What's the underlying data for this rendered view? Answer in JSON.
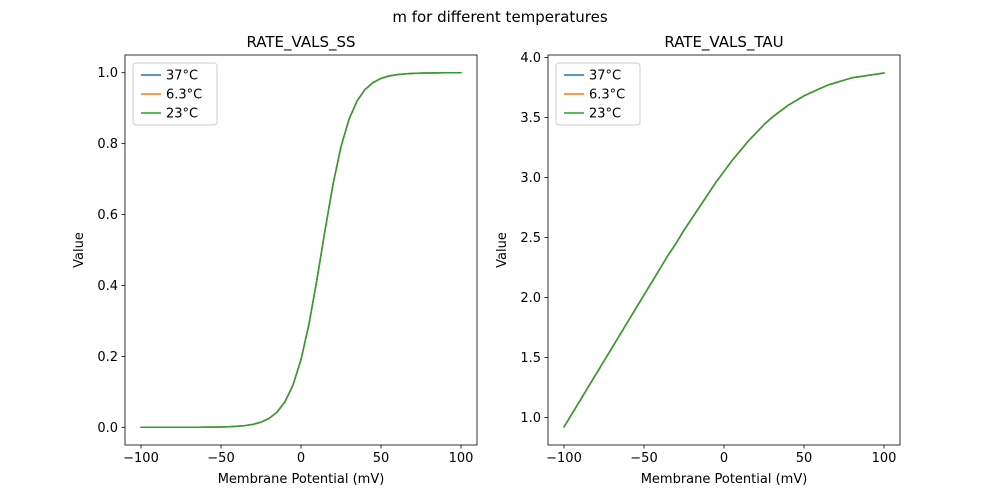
{
  "figure": {
    "title": "m for different temperatures",
    "background": "#ffffff"
  },
  "chart_data": [
    {
      "type": "line",
      "title": "RATE_VALS_SS",
      "xlabel": "Membrane Potential (mV)",
      "ylabel": "Value",
      "xlim": [
        -110,
        110
      ],
      "ylim": [
        -0.05,
        1.05
      ],
      "xticks": [
        -100,
        -50,
        0,
        50,
        100
      ],
      "xtick_labels": [
        "−100",
        "−50",
        "0",
        "50",
        "100"
      ],
      "yticks": [
        0.0,
        0.2,
        0.4,
        0.6,
        0.8,
        1.0
      ],
      "ytick_labels": [
        "0.0",
        "0.2",
        "0.4",
        "0.6",
        "0.8",
        "1.0"
      ],
      "grid": false,
      "legend_position": "upper left",
      "note": "all three temperature series overlap exactly; green (23°C) drawn on top",
      "x": [
        -100,
        -95,
        -90,
        -85,
        -80,
        -75,
        -70,
        -65,
        -60,
        -55,
        -50,
        -45,
        -40,
        -35,
        -30,
        -25,
        -20,
        -15,
        -10,
        -5,
        0,
        5,
        10,
        15,
        20,
        25,
        30,
        35,
        40,
        45,
        50,
        55,
        60,
        65,
        70,
        75,
        80,
        85,
        90,
        95,
        100
      ],
      "series": [
        {
          "name": "37°C",
          "color": "#1f77b4",
          "values": [
            0.0,
            0.0,
            0.0,
            0.0,
            0.0001,
            0.0001,
            0.0001,
            0.0002,
            0.0003,
            0.0005,
            0.0009,
            0.0016,
            0.0028,
            0.0048,
            0.0083,
            0.0145,
            0.0249,
            0.0426,
            0.072,
            0.1192,
            0.1908,
            0.2911,
            0.4174,
            0.5553,
            0.6852,
            0.7914,
            0.8687,
            0.9202,
            0.9526,
            0.9722,
            0.9839,
            0.9907,
            0.9946,
            0.9969,
            0.9982,
            0.999,
            0.9994,
            0.9997,
            0.9998,
            0.9999,
            0.9999
          ]
        },
        {
          "name": "6.3°C",
          "color": "#ff7f0e",
          "values": [
            0.0,
            0.0,
            0.0,
            0.0,
            0.0001,
            0.0001,
            0.0001,
            0.0002,
            0.0003,
            0.0005,
            0.0009,
            0.0016,
            0.0028,
            0.0048,
            0.0083,
            0.0145,
            0.0249,
            0.0426,
            0.072,
            0.1192,
            0.1908,
            0.2911,
            0.4174,
            0.5553,
            0.6852,
            0.7914,
            0.8687,
            0.9202,
            0.9526,
            0.9722,
            0.9839,
            0.9907,
            0.9946,
            0.9969,
            0.9982,
            0.999,
            0.9994,
            0.9997,
            0.9998,
            0.9999,
            0.9999
          ]
        },
        {
          "name": "23°C",
          "color": "#2ca02c",
          "values": [
            0.0,
            0.0,
            0.0,
            0.0,
            0.0001,
            0.0001,
            0.0001,
            0.0002,
            0.0003,
            0.0005,
            0.0009,
            0.0016,
            0.0028,
            0.0048,
            0.0083,
            0.0145,
            0.0249,
            0.0426,
            0.072,
            0.1192,
            0.1908,
            0.2911,
            0.4174,
            0.5553,
            0.6852,
            0.7914,
            0.8687,
            0.9202,
            0.9526,
            0.9722,
            0.9839,
            0.9907,
            0.9946,
            0.9969,
            0.9982,
            0.999,
            0.9994,
            0.9997,
            0.9998,
            0.9999,
            0.9999
          ]
        }
      ]
    },
    {
      "type": "line",
      "title": "RATE_VALS_TAU",
      "xlabel": "Membrane Potential (mV)",
      "ylabel": "Value",
      "xlim": [
        -110,
        110
      ],
      "ylim": [
        0.77,
        4.02
      ],
      "xticks": [
        -100,
        -50,
        0,
        50,
        100
      ],
      "xtick_labels": [
        "−100",
        "−50",
        "0",
        "50",
        "100"
      ],
      "yticks": [
        1.0,
        1.5,
        2.0,
        2.5,
        3.0,
        3.5,
        4.0
      ],
      "ytick_labels": [
        "1.0",
        "1.5",
        "2.0",
        "2.5",
        "3.0",
        "3.5",
        "4.0"
      ],
      "grid": false,
      "legend_position": "upper left",
      "note": "all three temperature series overlap exactly; green (23°C) drawn on top",
      "x": [
        -100,
        -95,
        -90,
        -85,
        -80,
        -75,
        -70,
        -65,
        -60,
        -55,
        -50,
        -45,
        -40,
        -35,
        -30,
        -25,
        -20,
        -15,
        -10,
        -5,
        0,
        5,
        10,
        15,
        20,
        25,
        30,
        35,
        40,
        45,
        50,
        55,
        60,
        65,
        70,
        75,
        80,
        85,
        90,
        95,
        100
      ],
      "series": [
        {
          "name": "37°C",
          "color": "#1f77b4",
          "values": [
            0.92,
            1.03,
            1.14,
            1.25,
            1.36,
            1.47,
            1.58,
            1.69,
            1.8,
            1.91,
            2.02,
            2.13,
            2.24,
            2.35,
            2.45,
            2.56,
            2.66,
            2.76,
            2.86,
            2.96,
            3.05,
            3.14,
            3.22,
            3.3,
            3.37,
            3.44,
            3.5,
            3.55,
            3.6,
            3.64,
            3.68,
            3.71,
            3.74,
            3.77,
            3.79,
            3.81,
            3.83,
            3.84,
            3.85,
            3.86,
            3.87
          ]
        },
        {
          "name": "6.3°C",
          "color": "#ff7f0e",
          "values": [
            0.92,
            1.03,
            1.14,
            1.25,
            1.36,
            1.47,
            1.58,
            1.69,
            1.8,
            1.91,
            2.02,
            2.13,
            2.24,
            2.35,
            2.45,
            2.56,
            2.66,
            2.76,
            2.86,
            2.96,
            3.05,
            3.14,
            3.22,
            3.3,
            3.37,
            3.44,
            3.5,
            3.55,
            3.6,
            3.64,
            3.68,
            3.71,
            3.74,
            3.77,
            3.79,
            3.81,
            3.83,
            3.84,
            3.85,
            3.86,
            3.87
          ]
        },
        {
          "name": "23°C",
          "color": "#2ca02c",
          "values": [
            0.92,
            1.03,
            1.14,
            1.25,
            1.36,
            1.47,
            1.58,
            1.69,
            1.8,
            1.91,
            2.02,
            2.13,
            2.24,
            2.35,
            2.45,
            2.56,
            2.66,
            2.76,
            2.86,
            2.96,
            3.05,
            3.14,
            3.22,
            3.3,
            3.37,
            3.44,
            3.5,
            3.55,
            3.6,
            3.64,
            3.68,
            3.71,
            3.74,
            3.77,
            3.79,
            3.81,
            3.83,
            3.84,
            3.85,
            3.86,
            3.87
          ]
        }
      ]
    }
  ]
}
